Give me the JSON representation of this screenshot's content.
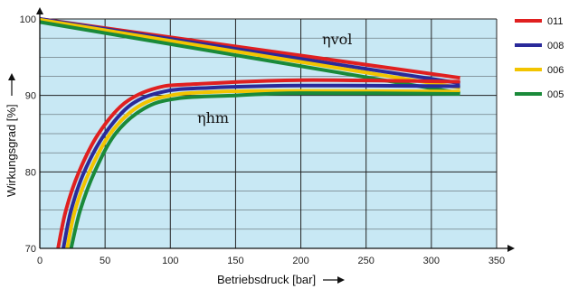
{
  "chart_data": {
    "type": "line",
    "xlabel": "Betriebsdruck [bar]",
    "ylabel": "Wirkungsgrad [%]",
    "xlim": [
      0,
      350
    ],
    "ylim": [
      70,
      100
    ],
    "x_ticks": [
      0,
      50,
      100,
      150,
      200,
      250,
      300,
      350
    ],
    "y_ticks": [
      70,
      80,
      90,
      100
    ],
    "grid": true,
    "legend_position": "right",
    "plot_background": "#c8e8f4",
    "annotations": [
      "ηvol",
      "ηhm"
    ],
    "series": [
      {
        "name": "011",
        "color": "#e02020",
        "vol": [
          [
            0,
            100
          ],
          [
            322,
            92.3
          ]
        ],
        "hm": [
          [
            14,
            70
          ],
          [
            20,
            75
          ],
          [
            30,
            80
          ],
          [
            45,
            85
          ],
          [
            65,
            89
          ],
          [
            90,
            91
          ],
          [
            120,
            91.5
          ],
          [
            200,
            92
          ],
          [
            322,
            91.8
          ]
        ]
      },
      {
        "name": "008",
        "color": "#2a2a9a",
        "vol": [
          [
            0,
            100
          ],
          [
            322,
            91.6
          ]
        ],
        "hm": [
          [
            18,
            70
          ],
          [
            24,
            75
          ],
          [
            34,
            80
          ],
          [
            50,
            85
          ],
          [
            70,
            88.8
          ],
          [
            95,
            90.5
          ],
          [
            130,
            91
          ],
          [
            200,
            91.3
          ],
          [
            322,
            91.2
          ]
        ]
      },
      {
        "name": "006",
        "color": "#f2c400",
        "vol": [
          [
            0,
            99.9
          ],
          [
            322,
            91
          ]
        ],
        "hm": [
          [
            21,
            70
          ],
          [
            27,
            75
          ],
          [
            38,
            80
          ],
          [
            54,
            85
          ],
          [
            75,
            88.5
          ],
          [
            100,
            90
          ],
          [
            140,
            90.5
          ],
          [
            200,
            90.6
          ],
          [
            322,
            90.5
          ]
        ]
      },
      {
        "name": "005",
        "color": "#1a8a3a",
        "vol": [
          [
            0,
            99.6
          ],
          [
            322,
            90.3
          ]
        ],
        "hm": [
          [
            24,
            70
          ],
          [
            31,
            75
          ],
          [
            42,
            80
          ],
          [
            58,
            85
          ],
          [
            80,
            88.3
          ],
          [
            105,
            89.6
          ],
          [
            150,
            90
          ],
          [
            200,
            90.3
          ],
          [
            322,
            90.2
          ]
        ]
      }
    ]
  }
}
